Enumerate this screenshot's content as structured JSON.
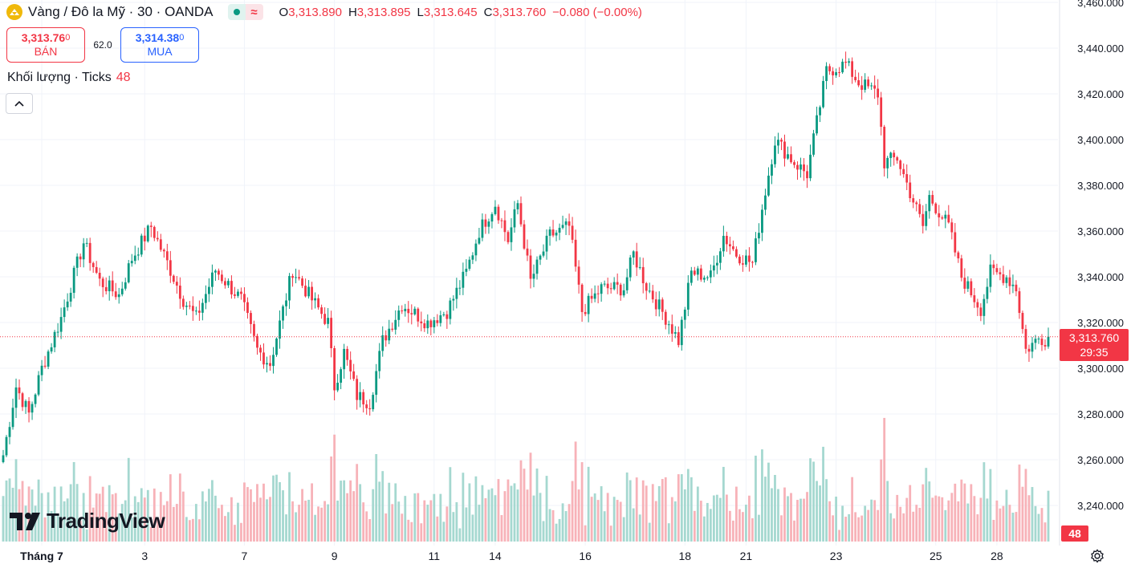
{
  "header": {
    "title": "Vàng / Đô la Mỹ · 30 · OANDA",
    "ohlc": {
      "o_label": "O",
      "o": "3,313.890",
      "h_label": "H",
      "h": "3,313.895",
      "l_label": "L",
      "l": "3,313.645",
      "c_label": "C",
      "c": "3,313.760",
      "change": "−0.080 (−0.00%)"
    },
    "wave_symbol": "≈"
  },
  "trade": {
    "sell_price": "3,313.76",
    "sell_price_small": "0",
    "sell_label": "BÁN",
    "spread": "62.0",
    "buy_price": "3,314.38",
    "buy_price_small": "0",
    "buy_label": "MUA"
  },
  "volume_legend": {
    "label": "Khối lượng · Ticks",
    "value": "48"
  },
  "last_price": {
    "price": "3,313.760",
    "countdown": "29:35",
    "volume": "48"
  },
  "branding": {
    "name": "TradingView"
  },
  "colors": {
    "up": "#089981",
    "down": "#f23645",
    "up_vol": "#a5d8d0",
    "down_vol": "#f7b2b8",
    "grid": "#f0f3fa",
    "text": "#131722",
    "buy": "#2962ff"
  },
  "chart_data": {
    "type": "candlestick",
    "y_ticks": [
      "3,240.000",
      "3,260.000",
      "3,280.000",
      "3,300.000",
      "3,320.000",
      "3,340.000",
      "3,360.000",
      "3,380.000",
      "3,400.000",
      "3,420.000",
      "3,440.000",
      "3,460.000"
    ],
    "y_tick_values": [
      3240,
      3260,
      3280,
      3300,
      3320,
      3340,
      3360,
      3380,
      3400,
      3420,
      3440,
      3460
    ],
    "x_ticks": [
      {
        "label": "Tháng 7",
        "bold": true,
        "bar": 0
      },
      {
        "label": "3",
        "bar": 44
      },
      {
        "label": "7",
        "bar": 75
      },
      {
        "label": "9",
        "bar": 103
      },
      {
        "label": "11",
        "bar": 134
      },
      {
        "label": "14",
        "bar": 153
      },
      {
        "label": "16",
        "bar": 181
      },
      {
        "label": "18",
        "bar": 212
      },
      {
        "label": "21",
        "bar": 231
      },
      {
        "label": "23",
        "bar": 259
      },
      {
        "label": "25",
        "bar": 290
      },
      {
        "label": "28",
        "bar": 309
      }
    ],
    "waypoints": [
      [
        0,
        3262
      ],
      [
        4,
        3292
      ],
      [
        8,
        3280
      ],
      [
        12,
        3300
      ],
      [
        18,
        3322
      ],
      [
        25,
        3355
      ],
      [
        30,
        3338
      ],
      [
        36,
        3332
      ],
      [
        40,
        3348
      ],
      [
        46,
        3362
      ],
      [
        52,
        3343
      ],
      [
        56,
        3330
      ],
      [
        60,
        3322
      ],
      [
        66,
        3343
      ],
      [
        74,
        3330
      ],
      [
        79,
        3308
      ],
      [
        83,
        3302
      ],
      [
        90,
        3343
      ],
      [
        96,
        3330
      ],
      [
        101,
        3320
      ],
      [
        103,
        3292
      ],
      [
        106,
        3307
      ],
      [
        110,
        3288
      ],
      [
        114,
        3285
      ],
      [
        118,
        3312
      ],
      [
        124,
        3328
      ],
      [
        132,
        3320
      ],
      [
        138,
        3325
      ],
      [
        144,
        3342
      ],
      [
        148,
        3360
      ],
      [
        153,
        3372
      ],
      [
        157,
        3356
      ],
      [
        160,
        3372
      ],
      [
        164,
        3338
      ],
      [
        170,
        3358
      ],
      [
        176,
        3362
      ],
      [
        180,
        3325
      ],
      [
        186,
        3335
      ],
      [
        193,
        3335
      ],
      [
        196,
        3350
      ],
      [
        200,
        3336
      ],
      [
        207,
        3320
      ],
      [
        210,
        3312
      ],
      [
        214,
        3342
      ],
      [
        220,
        3340
      ],
      [
        224,
        3358
      ],
      [
        228,
        3350
      ],
      [
        233,
        3346
      ],
      [
        236,
        3370
      ],
      [
        240,
        3400
      ],
      [
        246,
        3390
      ],
      [
        250,
        3385
      ],
      [
        256,
        3430
      ],
      [
        262,
        3433
      ],
      [
        266,
        3425
      ],
      [
        272,
        3420
      ],
      [
        274,
        3390
      ],
      [
        278,
        3392
      ],
      [
        286,
        3362
      ],
      [
        288,
        3375
      ],
      [
        294,
        3362
      ],
      [
        298,
        3340
      ],
      [
        304,
        3326
      ],
      [
        307,
        3342
      ],
      [
        312,
        3340
      ],
      [
        315,
        3335
      ],
      [
        318,
        3308
      ],
      [
        322,
        3313
      ]
    ],
    "bars_total": 326,
    "last_value": 3313.76,
    "volume_max": 250
  }
}
